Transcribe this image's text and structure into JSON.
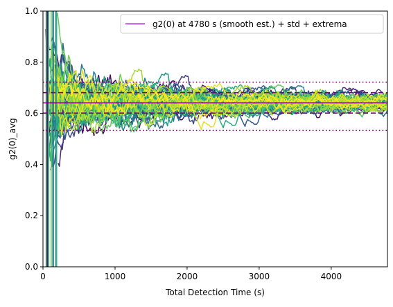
{
  "chart_data": {
    "type": "line",
    "title": "",
    "xlabel": "Total Detection Time (s)",
    "ylabel": "g2(0)_avg",
    "xlim": [
      0,
      4780
    ],
    "ylim": [
      0.0,
      1.0
    ],
    "x_ticks": [
      0,
      1000,
      2000,
      3000,
      4000
    ],
    "y_ticks": [
      0.0,
      0.2,
      0.4,
      0.6,
      0.8,
      1.0
    ],
    "x_tick_labels": [
      "0",
      "1000",
      "2000",
      "3000",
      "4000"
    ],
    "y_tick_labels": [
      "0.0",
      "0.2",
      "0.4",
      "0.6",
      "0.8",
      "1.0"
    ],
    "grid": false,
    "legend": {
      "placement": "top-right",
      "entries": [
        {
          "label": "g2(0) at 4780 s (smooth est.) + std + extrema",
          "color": "#7b1f8a"
        }
      ]
    },
    "reference_lines": {
      "color": "#800080",
      "estimate": 0.641,
      "std_low": 0.601,
      "std_high": 0.681,
      "min": 0.533,
      "max": 0.722
    },
    "series_summary": {
      "count": 60,
      "colormap": "viridis",
      "converges_to": 0.641,
      "end_time": 4780
    }
  }
}
